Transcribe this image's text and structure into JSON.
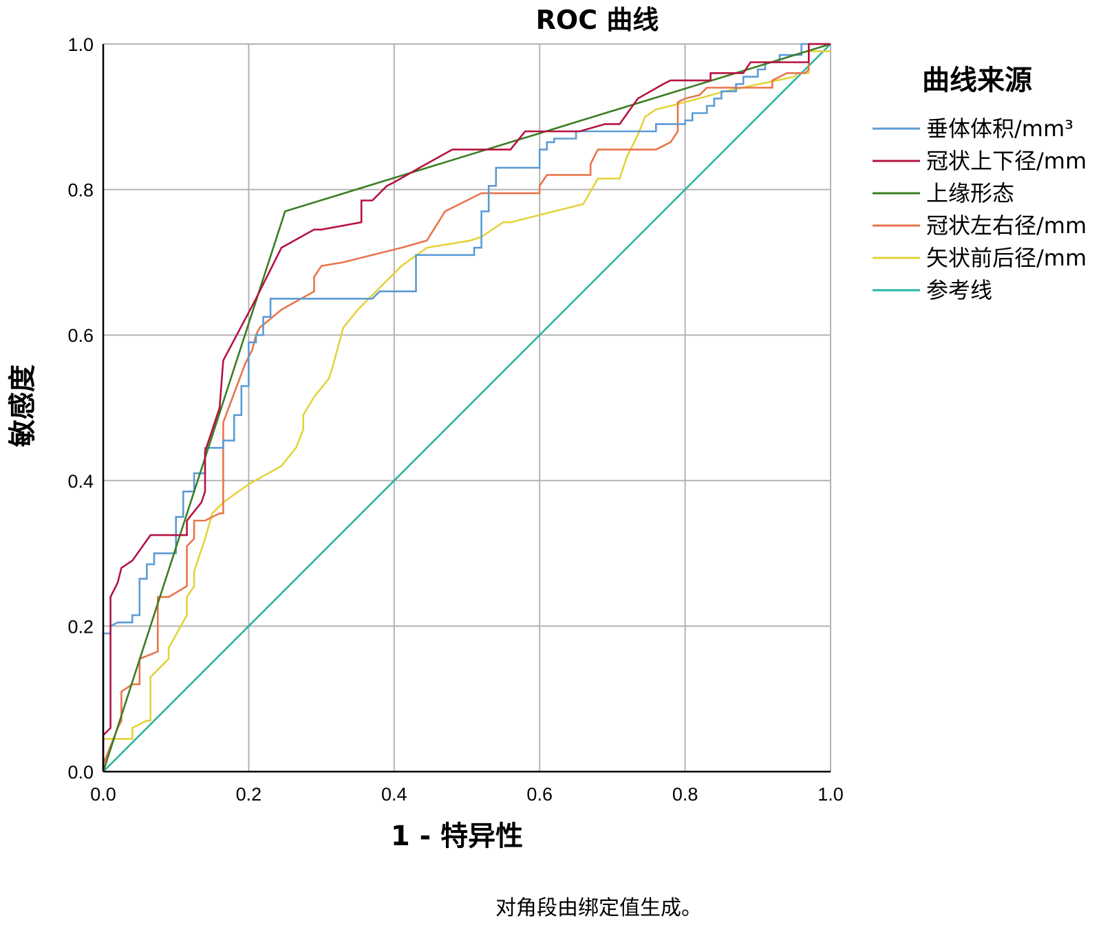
{
  "chart_data": {
    "type": "line",
    "title": "ROC 曲线",
    "xlabel": "1 - 特异性",
    "ylabel": "敏感度",
    "xlim": [
      0,
      1
    ],
    "ylim": [
      0,
      1
    ],
    "x_ticks": [
      "0.0",
      "0.2",
      "0.4",
      "0.6",
      "0.8",
      "1.0"
    ],
    "y_ticks": [
      "0.0",
      "0.2",
      "0.4",
      "0.6",
      "0.8",
      "1.0"
    ],
    "grid": true,
    "legend_title": "曲线来源",
    "legend_position": "right",
    "footnote": "对角段由绑定值生成。",
    "series": [
      {
        "name": "垂体体积/mm³",
        "color": "#5b9bd5",
        "points": [
          [
            0,
            0
          ],
          [
            0,
            0.19
          ],
          [
            0.01,
            0.19
          ],
          [
            0.01,
            0.2
          ],
          [
            0.02,
            0.205
          ],
          [
            0.04,
            0.205
          ],
          [
            0.04,
            0.215
          ],
          [
            0.05,
            0.215
          ],
          [
            0.05,
            0.265
          ],
          [
            0.06,
            0.265
          ],
          [
            0.06,
            0.285
          ],
          [
            0.07,
            0.285
          ],
          [
            0.07,
            0.3
          ],
          [
            0.1,
            0.3
          ],
          [
            0.1,
            0.35
          ],
          [
            0.11,
            0.35
          ],
          [
            0.11,
            0.385
          ],
          [
            0.125,
            0.385
          ],
          [
            0.125,
            0.41
          ],
          [
            0.14,
            0.41
          ],
          [
            0.14,
            0.445
          ],
          [
            0.165,
            0.445
          ],
          [
            0.165,
            0.455
          ],
          [
            0.18,
            0.455
          ],
          [
            0.18,
            0.49
          ],
          [
            0.19,
            0.49
          ],
          [
            0.19,
            0.53
          ],
          [
            0.2,
            0.53
          ],
          [
            0.2,
            0.59
          ],
          [
            0.21,
            0.59
          ],
          [
            0.21,
            0.6
          ],
          [
            0.22,
            0.6
          ],
          [
            0.22,
            0.625
          ],
          [
            0.23,
            0.625
          ],
          [
            0.23,
            0.65
          ],
          [
            0.37,
            0.65
          ],
          [
            0.38,
            0.66
          ],
          [
            0.43,
            0.66
          ],
          [
            0.43,
            0.71
          ],
          [
            0.51,
            0.71
          ],
          [
            0.51,
            0.72
          ],
          [
            0.52,
            0.72
          ],
          [
            0.52,
            0.77
          ],
          [
            0.53,
            0.77
          ],
          [
            0.53,
            0.805
          ],
          [
            0.54,
            0.805
          ],
          [
            0.54,
            0.83
          ],
          [
            0.6,
            0.83
          ],
          [
            0.6,
            0.855
          ],
          [
            0.61,
            0.855
          ],
          [
            0.61,
            0.865
          ],
          [
            0.62,
            0.865
          ],
          [
            0.62,
            0.87
          ],
          [
            0.65,
            0.87
          ],
          [
            0.65,
            0.88
          ],
          [
            0.76,
            0.88
          ],
          [
            0.76,
            0.89
          ],
          [
            0.8,
            0.89
          ],
          [
            0.8,
            0.895
          ],
          [
            0.81,
            0.895
          ],
          [
            0.81,
            0.905
          ],
          [
            0.83,
            0.905
          ],
          [
            0.83,
            0.915
          ],
          [
            0.84,
            0.915
          ],
          [
            0.84,
            0.925
          ],
          [
            0.85,
            0.925
          ],
          [
            0.85,
            0.935
          ],
          [
            0.87,
            0.935
          ],
          [
            0.87,
            0.945
          ],
          [
            0.88,
            0.945
          ],
          [
            0.88,
            0.955
          ],
          [
            0.9,
            0.955
          ],
          [
            0.9,
            0.965
          ],
          [
            0.91,
            0.965
          ],
          [
            0.91,
            0.975
          ],
          [
            0.93,
            0.975
          ],
          [
            0.93,
            0.985
          ],
          [
            0.96,
            0.985
          ],
          [
            0.96,
            1.0
          ],
          [
            1.0,
            1.0
          ]
        ]
      },
      {
        "name": "冠状上下径/mm",
        "color": "#b5123f",
        "points": [
          [
            0,
            0
          ],
          [
            0,
            0.05
          ],
          [
            0.01,
            0.06
          ],
          [
            0.01,
            0.24
          ],
          [
            0.02,
            0.26
          ],
          [
            0.025,
            0.28
          ],
          [
            0.04,
            0.29
          ],
          [
            0.065,
            0.325
          ],
          [
            0.115,
            0.325
          ],
          [
            0.115,
            0.345
          ],
          [
            0.135,
            0.37
          ],
          [
            0.14,
            0.385
          ],
          [
            0.14,
            0.44
          ],
          [
            0.16,
            0.5
          ],
          [
            0.165,
            0.565
          ],
          [
            0.21,
            0.65
          ],
          [
            0.245,
            0.72
          ],
          [
            0.29,
            0.745
          ],
          [
            0.3,
            0.745
          ],
          [
            0.355,
            0.755
          ],
          [
            0.355,
            0.785
          ],
          [
            0.37,
            0.785
          ],
          [
            0.39,
            0.805
          ],
          [
            0.4,
            0.81
          ],
          [
            0.435,
            0.83
          ],
          [
            0.48,
            0.855
          ],
          [
            0.525,
            0.855
          ],
          [
            0.56,
            0.855
          ],
          [
            0.58,
            0.88
          ],
          [
            0.655,
            0.88
          ],
          [
            0.69,
            0.89
          ],
          [
            0.71,
            0.89
          ],
          [
            0.735,
            0.925
          ],
          [
            0.77,
            0.945
          ],
          [
            0.78,
            0.95
          ],
          [
            0.835,
            0.95
          ],
          [
            0.835,
            0.96
          ],
          [
            0.88,
            0.96
          ],
          [
            0.89,
            0.975
          ],
          [
            0.93,
            0.975
          ],
          [
            0.97,
            0.975
          ],
          [
            0.97,
            0.98
          ],
          [
            0.97,
            1.0
          ],
          [
            1.0,
            1.0
          ]
        ]
      },
      {
        "name": "上缘形态",
        "color": "#3a7d22",
        "points": [
          [
            0,
            0
          ],
          [
            0.25,
            0.77
          ],
          [
            1.0,
            1.0
          ]
        ]
      },
      {
        "name": "冠状左右径/mm",
        "color": "#e8744a",
        "points": [
          [
            0,
            0
          ],
          [
            0,
            0.01
          ],
          [
            0.01,
            0.035
          ],
          [
            0.02,
            0.06
          ],
          [
            0.025,
            0.07
          ],
          [
            0.025,
            0.11
          ],
          [
            0.04,
            0.12
          ],
          [
            0.05,
            0.12
          ],
          [
            0.05,
            0.155
          ],
          [
            0.075,
            0.165
          ],
          [
            0.075,
            0.24
          ],
          [
            0.09,
            0.24
          ],
          [
            0.115,
            0.255
          ],
          [
            0.115,
            0.31
          ],
          [
            0.125,
            0.32
          ],
          [
            0.125,
            0.345
          ],
          [
            0.14,
            0.345
          ],
          [
            0.16,
            0.355
          ],
          [
            0.165,
            0.355
          ],
          [
            0.165,
            0.48
          ],
          [
            0.195,
            0.56
          ],
          [
            0.205,
            0.58
          ],
          [
            0.21,
            0.6
          ],
          [
            0.215,
            0.61
          ],
          [
            0.245,
            0.635
          ],
          [
            0.29,
            0.66
          ],
          [
            0.29,
            0.68
          ],
          [
            0.3,
            0.695
          ],
          [
            0.33,
            0.7
          ],
          [
            0.37,
            0.71
          ],
          [
            0.41,
            0.72
          ],
          [
            0.445,
            0.73
          ],
          [
            0.47,
            0.77
          ],
          [
            0.5,
            0.785
          ],
          [
            0.52,
            0.795
          ],
          [
            0.6,
            0.795
          ],
          [
            0.6,
            0.805
          ],
          [
            0.61,
            0.82
          ],
          [
            0.67,
            0.82
          ],
          [
            0.67,
            0.835
          ],
          [
            0.68,
            0.855
          ],
          [
            0.76,
            0.855
          ],
          [
            0.78,
            0.865
          ],
          [
            0.79,
            0.88
          ],
          [
            0.79,
            0.92
          ],
          [
            0.8,
            0.925
          ],
          [
            0.82,
            0.93
          ],
          [
            0.83,
            0.94
          ],
          [
            0.86,
            0.94
          ],
          [
            0.92,
            0.94
          ],
          [
            0.92,
            0.95
          ],
          [
            0.93,
            0.955
          ],
          [
            0.94,
            0.96
          ],
          [
            0.965,
            0.96
          ],
          [
            0.97,
            0.965
          ],
          [
            0.97,
            1.0
          ],
          [
            1.0,
            1.0
          ]
        ]
      },
      {
        "name": "矢状前后径/mm",
        "color": "#e3d33a",
        "points": [
          [
            0,
            0
          ],
          [
            0,
            0.045
          ],
          [
            0.04,
            0.045
          ],
          [
            0.04,
            0.06
          ],
          [
            0.06,
            0.07
          ],
          [
            0.065,
            0.07
          ],
          [
            0.065,
            0.13
          ],
          [
            0.08,
            0.145
          ],
          [
            0.09,
            0.155
          ],
          [
            0.09,
            0.17
          ],
          [
            0.115,
            0.215
          ],
          [
            0.115,
            0.24
          ],
          [
            0.125,
            0.255
          ],
          [
            0.125,
            0.275
          ],
          [
            0.14,
            0.32
          ],
          [
            0.15,
            0.355
          ],
          [
            0.165,
            0.37
          ],
          [
            0.2,
            0.395
          ],
          [
            0.245,
            0.42
          ],
          [
            0.265,
            0.445
          ],
          [
            0.275,
            0.47
          ],
          [
            0.275,
            0.49
          ],
          [
            0.29,
            0.515
          ],
          [
            0.31,
            0.54
          ],
          [
            0.315,
            0.555
          ],
          [
            0.33,
            0.61
          ],
          [
            0.35,
            0.635
          ],
          [
            0.38,
            0.665
          ],
          [
            0.41,
            0.695
          ],
          [
            0.445,
            0.72
          ],
          [
            0.505,
            0.73
          ],
          [
            0.52,
            0.735
          ],
          [
            0.55,
            0.755
          ],
          [
            0.56,
            0.755
          ],
          [
            0.66,
            0.78
          ],
          [
            0.68,
            0.815
          ],
          [
            0.71,
            0.815
          ],
          [
            0.72,
            0.845
          ],
          [
            0.735,
            0.875
          ],
          [
            0.745,
            0.9
          ],
          [
            0.76,
            0.91
          ],
          [
            0.8,
            0.92
          ],
          [
            0.855,
            0.935
          ],
          [
            0.95,
            0.955
          ],
          [
            0.955,
            0.96
          ],
          [
            0.97,
            0.96
          ],
          [
            0.97,
            0.99
          ],
          [
            1.0,
            0.99
          ]
        ]
      },
      {
        "name": "参考线",
        "color": "#26b3a0",
        "points": [
          [
            0,
            0
          ],
          [
            1.0,
            1.0
          ]
        ]
      }
    ]
  }
}
